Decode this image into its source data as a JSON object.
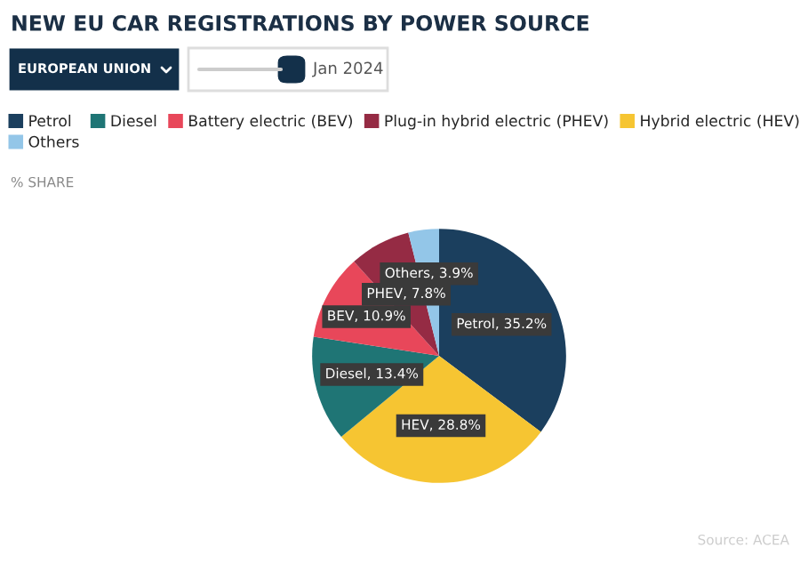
{
  "chart_data": {
    "type": "pie",
    "title": "NEW EU CAR REGISTRATIONS BY POWER SOURCE",
    "categories": [
      "Petrol",
      "Hybrid electric (HEV)",
      "Diesel",
      "Battery electric (BEV)",
      "Plug-in hybrid electric (PHEV)",
      "Others"
    ],
    "values": [
      35.2,
      28.8,
      13.4,
      10.9,
      7.8,
      3.9
    ],
    "colors": [
      "#1b3f5e",
      "#f6c532",
      "#1f7575",
      "#e8475a",
      "#952b44",
      "#93c6e8"
    ],
    "value_labels": [
      "Petrol, 35.2%",
      "HEV, 28.8%",
      "Diesel, 13.4%",
      "BEV, 10.9%",
      "PHEV, 7.8%",
      "Others, 3.9%"
    ],
    "legend": "top left",
    "annotations": [
      "EUROPEAN UNION",
      "Jan 2024",
      "% SHARE",
      "Source: ACEA"
    ]
  }
}
